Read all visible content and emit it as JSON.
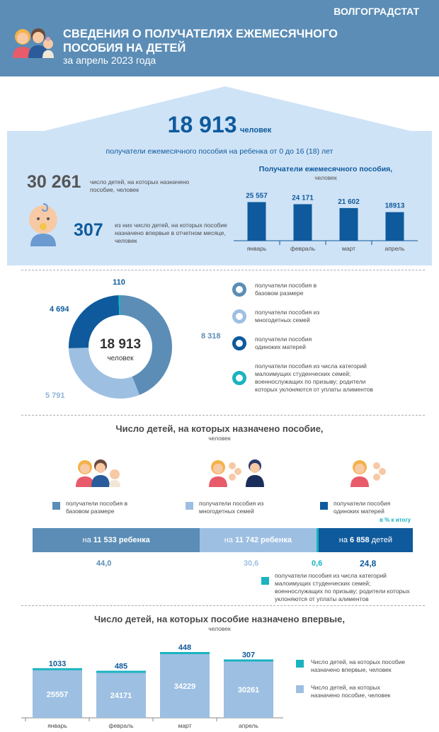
{
  "header": {
    "brand": "ВОЛГОГРАДСТАТ",
    "title": "СВЕДЕНИЯ О ПОЛУЧАТЕЛЯХ ЕЖЕМЕСЯЧНОГО ПОСОБИЯ НА ДЕТЕЙ",
    "subtitle": "за  апрель 2023 года"
  },
  "summary": {
    "total_value": "18 913",
    "total_unit": "человек",
    "total_caption": "получатели ежемесячного пособия на ребенка от 0 до 16 (18) лет",
    "children_value": "30 261",
    "children_caption": "число детей, на которых назначено пособие, человек",
    "first_value": "307",
    "first_caption": "из них число детей, на которых пособие назначено впервые в отчетном месяце, человек"
  },
  "chart_data": [
    {
      "type": "bar",
      "title": "Получатели ежемесячного пособия,",
      "subtitle": "человек",
      "categories": [
        "январь",
        "февраль",
        "март",
        "апрель"
      ],
      "values": [
        25557,
        24171,
        21602,
        18913
      ],
      "value_labels": [
        "25 557",
        "24 171",
        "21 602",
        "18913"
      ],
      "ylim": [
        0,
        30000
      ],
      "color": "#0e5a9c"
    },
    {
      "type": "pie",
      "center_value": "18 913",
      "center_unit": "человек",
      "slices": [
        {
          "label": "получатели пособия в базовом размере",
          "value": 8318,
          "value_label": "8 318",
          "color": "#5b8db6"
        },
        {
          "label": "получатели пособия из многодетных семей",
          "value": 5791,
          "value_label": "5 791",
          "color": "#9dbfe2"
        },
        {
          "label": "получатели пособия одиноких матерей",
          "value": 4694,
          "value_label": "4 694",
          "color": "#0e5a9c"
        },
        {
          "label": "получатели пособия из числа категорий малоимущих студенческих семей; военнослужащих по призыву; родители которых уклоняются от уплаты алиментов",
          "value": 110,
          "value_label": "110",
          "color": "#19b3c0"
        }
      ]
    },
    {
      "type": "bar",
      "stacked": true,
      "title": "Число детей, на которых назначено пособие,",
      "subtitle": "человек",
      "percent_note": "в %  к итогу",
      "segments": [
        {
          "label": "получатели пособия в базовом размере",
          "prefix": "на",
          "count": "11 533",
          "suffix": "ребенка",
          "percent": 44.0,
          "percent_label": "44,0",
          "color": "#5b8db6"
        },
        {
          "label": "получатели пособия из многодетных семей",
          "prefix": "на",
          "count": "11 742",
          "suffix": "ребенка",
          "percent": 30.6,
          "percent_label": "30,6",
          "color": "#9dbfe2"
        },
        {
          "label": "получатели пособия из числа категорий малоимущих студенческих семей; военнослужащих по призыву; родители которых уклоняются от уплаты алиментов",
          "prefix": "",
          "count": "",
          "suffix": "",
          "percent": 0.6,
          "percent_label": "0,6",
          "color": "#19b3c0"
        },
        {
          "label": "получатели пособия одиноких матерей",
          "prefix": "на",
          "count": "6 858",
          "suffix": "детей",
          "percent": 24.8,
          "percent_label": "24,8",
          "color": "#0e5a9c"
        }
      ]
    },
    {
      "type": "bar",
      "stacked": true,
      "title": "Число детей, на которых пособие назначено впервые,",
      "subtitle": "человек",
      "categories": [
        "январь",
        "февраль",
        "март",
        "апрель"
      ],
      "series": [
        {
          "name": "Число детей, на которых назначено пособие, человек",
          "values": [
            25557,
            24171,
            34229,
            30261
          ],
          "color": "#9dbfe2"
        },
        {
          "name": "Число детей, на которых пособие назначено впервые, человек",
          "values": [
            1033,
            485,
            448,
            307
          ],
          "color": "#19b3c0"
        }
      ]
    }
  ]
}
